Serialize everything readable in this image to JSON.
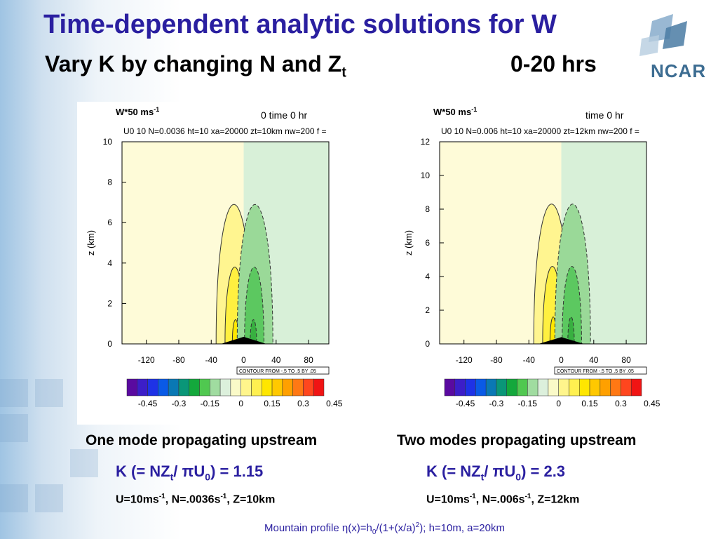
{
  "slide": {
    "title": "Time-dependent analytic solutions for W",
    "subtitle_prefix": "Vary K by changing N and Z",
    "subtitle_sub": "t",
    "time_range": "0-20 hrs",
    "logo_text": "NCAR",
    "footnote": {
      "p1": "Mountain profile η(x)=h",
      "s1": "0",
      "p2": "/(1+(x/a)",
      "s2": "2",
      "p3": "); h=10m, a=20km"
    }
  },
  "panels": [
    {
      "var_label": "W*50 ms",
      "var_sup": "-1",
      "time_label": "0 time 0 hr",
      "params": "U0 10 N=0.0036  ht=10 xa=20000 zt=10km nw=200 f =",
      "caption": "One mode propagating upstream",
      "k_line": {
        "p1": "K (= NZ",
        "s1": "t",
        "p2": "/ πU",
        "s2": "0",
        "p3": ") = 1.15"
      },
      "u_line": {
        "p1": "U=10ms",
        "s1": "-1",
        "p2": ", N=.0036s",
        "s2": "-1",
        "p3": ", Z=10km"
      }
    },
    {
      "var_label": "W*50 ms",
      "var_sup": "-1",
      "time_label": "time 0 hr",
      "params": "U0 10 N=0.006  ht=10 xa=20000 zt=12km nw=200 f =",
      "caption": "Two modes propagating upstream",
      "k_line": {
        "p1": "K (= NZ",
        "s1": "t",
        "p2": "/ πU",
        "s2": "0",
        "p3": ") = 2.3"
      },
      "u_line": {
        "p1": "U=10ms",
        "s1": "-1",
        "p2": ", N=.006s",
        "s2": "-1",
        "p3": ", Z=12km"
      }
    }
  ],
  "chart_data": [
    {
      "type": "contour",
      "title": "0 time 0 hr",
      "ylabel": "z (km)",
      "xlim": [
        -150,
        105
      ],
      "ylim": [
        0,
        10
      ],
      "x_ticks": [
        -120,
        -80,
        -40,
        0,
        40,
        80
      ],
      "y_ticks": [
        0,
        2,
        4,
        6,
        8,
        10
      ],
      "contour_note": "CONTOUR FROM -.5 TO .5 BY .05",
      "background": {
        "left_color": "#fefbd8",
        "right_color": "#d8f0d8",
        "split_x": 0
      },
      "positive_lobes": [
        {
          "center_x": -12,
          "half_width": 22,
          "top": 6.9,
          "color": "#fff590"
        },
        {
          "center_x": -11,
          "half_width": 12,
          "top": 3.8,
          "color": "#fff040"
        },
        {
          "center_x": -10,
          "half_width": 4,
          "top": 1.2,
          "color": "#ffe800"
        }
      ],
      "negative_lobes": [
        {
          "center_x": 14,
          "half_width": 22,
          "top": 6.9,
          "color": "#9ad998"
        },
        {
          "center_x": 13,
          "half_width": 12,
          "top": 3.8,
          "color": "#5cc860"
        },
        {
          "center_x": 12,
          "half_width": 4,
          "top": 1.2,
          "color": "#38b040"
        }
      ],
      "mountain": {
        "half_width": 28,
        "height": 0.35
      },
      "colorbar": {
        "ticks": [
          "-0.45",
          "-0.3",
          "-0.15",
          "0",
          "0.15",
          "0.3",
          "0.45"
        ],
        "colors": [
          "#5a0aa0",
          "#3c1ec8",
          "#1e32e6",
          "#0a5ae6",
          "#0a78b4",
          "#0a9678",
          "#14a83c",
          "#50c850",
          "#a0dca0",
          "#dcf0dc",
          "#fafac8",
          "#fff58c",
          "#fff050",
          "#ffe600",
          "#ffc800",
          "#ffa000",
          "#ff7814",
          "#ff461e",
          "#f01414"
        ]
      }
    },
    {
      "type": "contour",
      "title": "time 0 hr",
      "ylabel": "z (km)",
      "xlim": [
        -150,
        105
      ],
      "ylim": [
        0,
        12
      ],
      "x_ticks": [
        -120,
        -80,
        -40,
        0,
        40,
        80
      ],
      "y_ticks": [
        0,
        2,
        4,
        6,
        8,
        10,
        12
      ],
      "contour_note": "CONTOUR FROM -.5 TO .5 BY .05",
      "background": {
        "left_color": "#fefbd8",
        "right_color": "#d8f0d8",
        "split_x": 0
      },
      "positive_lobes": [
        {
          "center_x": -12,
          "half_width": 22,
          "top": 8.3,
          "color": "#fff590"
        },
        {
          "center_x": -11,
          "half_width": 12,
          "top": 4.6,
          "color": "#fff040"
        },
        {
          "center_x": -10,
          "half_width": 4,
          "top": 1.6,
          "color": "#ffe800"
        }
      ],
      "negative_lobes": [
        {
          "center_x": 14,
          "half_width": 22,
          "top": 8.3,
          "color": "#9ad998"
        },
        {
          "center_x": 13,
          "half_width": 12,
          "top": 4.6,
          "color": "#5cc860"
        },
        {
          "center_x": 12,
          "half_width": 4,
          "top": 1.6,
          "color": "#38b040"
        }
      ],
      "mountain": {
        "half_width": 28,
        "height": 0.4
      },
      "colorbar": {
        "ticks": [
          "-0.45",
          "-0.3",
          "-0.15",
          "0",
          "0.15",
          "0.3",
          "0.45"
        ],
        "colors": [
          "#5a0aa0",
          "#3c1ec8",
          "#1e32e6",
          "#0a5ae6",
          "#0a78b4",
          "#0a9678",
          "#14a83c",
          "#50c850",
          "#a0dca0",
          "#dcf0dc",
          "#fafac8",
          "#fff58c",
          "#fff050",
          "#ffe600",
          "#ffc800",
          "#ffa000",
          "#ff7814",
          "#ff461e",
          "#f01414"
        ]
      }
    }
  ]
}
